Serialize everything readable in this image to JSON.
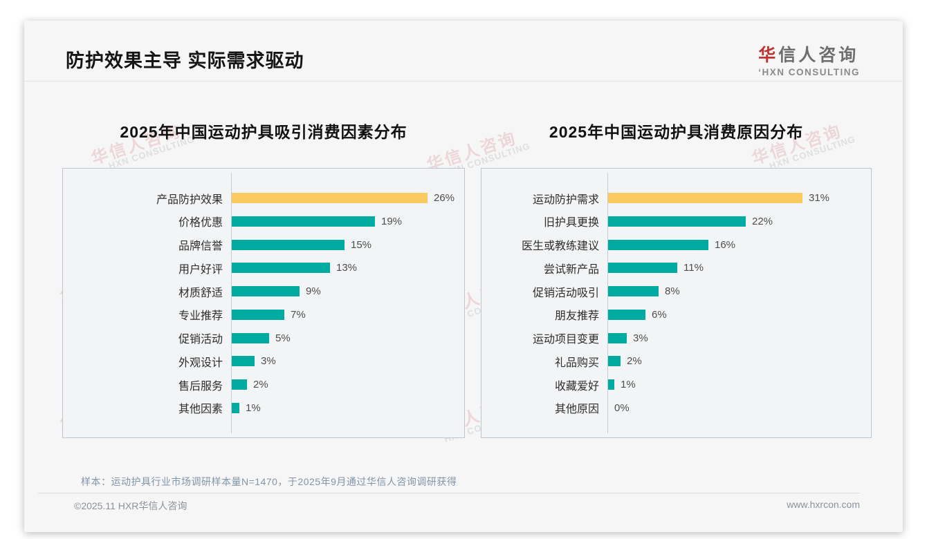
{
  "page": {
    "title": "防护效果主导 实际需求驱动",
    "logo": {
      "cn_accent": "华",
      "cn_rest": "信人咨询",
      "en": "HXN CONSULTING"
    },
    "watermark": {
      "cn": "华信人咨询",
      "en": "HXN CONSULTING"
    },
    "sample_note": "样本：运动护具行业市场调研样本量N=1470，于2025年9月通过华信人咨询调研获得",
    "footer": {
      "left": "©2025.11 HXR华信人咨询",
      "right": "www.hxrcon.com"
    }
  },
  "colors": {
    "accent_red": "#bf3330",
    "bar_teal": "#00aba2",
    "bar_highlight": "#fbca5f"
  },
  "chart_data": [
    {
      "type": "bar",
      "orientation": "horizontal",
      "title": "2025年中国运动护具吸引消费因素分布",
      "categories": [
        "产品防护效果",
        "价格优惠",
        "品牌信誉",
        "用户好评",
        "材质舒适",
        "专业推荐",
        "促销活动",
        "外观设计",
        "售后服务",
        "其他因素"
      ],
      "values": [
        26,
        19,
        15,
        13,
        9,
        7,
        5,
        3,
        2,
        1
      ],
      "value_suffix": "%",
      "highlight_index": 0,
      "xlim": [
        0,
        31
      ],
      "grid": false,
      "legend": "none"
    },
    {
      "type": "bar",
      "orientation": "horizontal",
      "title": "2025年中国运动护具消费原因分布",
      "categories": [
        "运动防护需求",
        "旧护具更换",
        "医生或教练建议",
        "尝试新产品",
        "促销活动吸引",
        "朋友推荐",
        "运动项目变更",
        "礼品购买",
        "收藏爱好",
        "其他原因"
      ],
      "values": [
        31,
        22,
        16,
        11,
        8,
        6,
        3,
        2,
        1,
        0
      ],
      "value_suffix": "%",
      "highlight_index": 0,
      "xlim": [
        0,
        36
      ],
      "grid": false,
      "legend": "none"
    }
  ]
}
